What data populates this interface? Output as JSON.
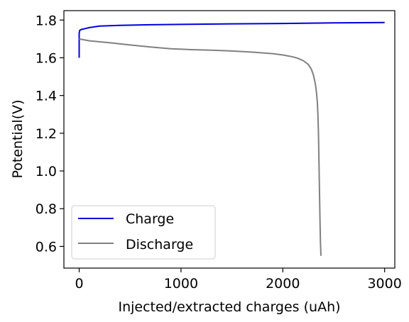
{
  "chart_data": {
    "type": "line",
    "title": "",
    "xlabel": "Injected/extracted charges (uAh)",
    "ylabel": "Potential(V)",
    "xlim": [
      -150,
      3100
    ],
    "ylim": [
      0.485,
      1.85
    ],
    "x_ticks": [
      0,
      1000,
      2000,
      3000
    ],
    "x_tick_labels": [
      "0",
      "1000",
      "2000",
      "3000"
    ],
    "y_ticks": [
      0.6,
      0.8,
      1.0,
      1.2,
      1.4,
      1.6,
      1.8
    ],
    "y_tick_labels": [
      "0.6",
      "0.8",
      "1.0",
      "1.2",
      "1.4",
      "1.6",
      "1.8"
    ],
    "grid": false,
    "legend_position": "lower-left",
    "series": [
      {
        "name": "Charge",
        "color": "#0000dd",
        "x": [
          0,
          0,
          5,
          20,
          60,
          100,
          200,
          400,
          700,
          1000,
          1500,
          2000,
          2500,
          3000
        ],
        "y": [
          1.6,
          1.73,
          1.745,
          1.75,
          1.755,
          1.76,
          1.768,
          1.772,
          1.775,
          1.777,
          1.78,
          1.782,
          1.785,
          1.787
        ]
      },
      {
        "name": "Discharge",
        "color": "#808080",
        "x": [
          0,
          100,
          300,
          500,
          700,
          900,
          1100,
          1300,
          1500,
          1700,
          1900,
          2000,
          2100,
          2150,
          2200,
          2250,
          2280,
          2300,
          2320,
          2330,
          2340,
          2345,
          2350,
          2355,
          2360,
          2365,
          2370,
          2375
        ],
        "y": [
          1.7,
          1.69,
          1.68,
          1.668,
          1.657,
          1.648,
          1.643,
          1.64,
          1.636,
          1.63,
          1.622,
          1.615,
          1.605,
          1.597,
          1.585,
          1.565,
          1.54,
          1.51,
          1.46,
          1.42,
          1.36,
          1.3,
          1.2,
          1.05,
          0.9,
          0.75,
          0.62,
          0.55
        ]
      }
    ]
  }
}
